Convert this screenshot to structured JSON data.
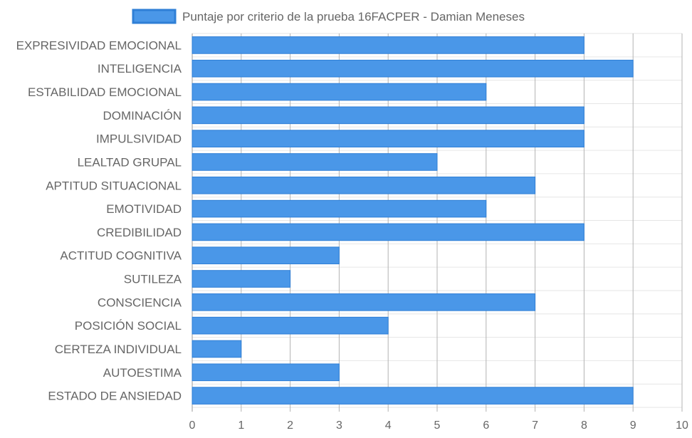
{
  "chart_data": {
    "type": "bar",
    "orientation": "horizontal",
    "legend_position": "top",
    "grid": true,
    "categories": [
      "EXPRESIVIDAD EMOCIONAL",
      "INTELIGENCIA",
      "ESTABILIDAD EMOCIONAL",
      "DOMINACIÓN",
      "IMPULSIVIDAD",
      "LEALTAD GRUPAL",
      "APTITUD SITUACIONAL",
      "EMOTIVIDAD",
      "CREDIBILIDAD",
      "ACTITUD COGNITIVA",
      "SUTILEZA",
      "CONSCIENCIA",
      "POSICIÓN SOCIAL",
      "CERTEZA INDIVIDUAL",
      "AUTOESTIMA",
      "ESTADO DE ANSIEDAD"
    ],
    "series": [
      {
        "name": "Puntaje por criterio de la prueba 16FACPER - Damian Meneses",
        "values": [
          8,
          9,
          6,
          8,
          8,
          5,
          7,
          6,
          8,
          3,
          2,
          7,
          4,
          1,
          3,
          9
        ],
        "color": "#4a97e8",
        "border_color": "#2f7fd6"
      }
    ],
    "xlim": [
      0,
      10
    ],
    "xticks": [
      "0",
      "1",
      "2",
      "3",
      "4",
      "5",
      "6",
      "7",
      "8",
      "9",
      "10"
    ]
  }
}
